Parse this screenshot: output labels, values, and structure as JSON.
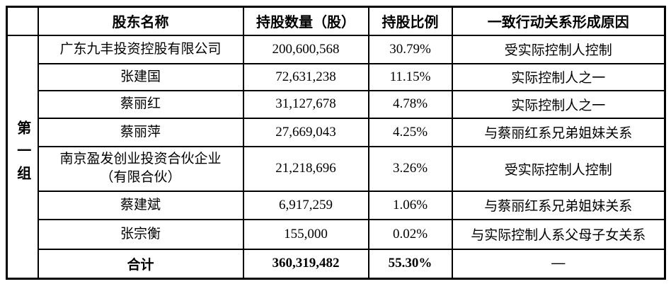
{
  "table": {
    "group_label": "第一组",
    "headers": {
      "name": "股东名称",
      "shares": "持股数量（股）",
      "ratio": "持股比例",
      "reason": "一致行动关系形成原因"
    },
    "rows": [
      {
        "name": "广东九丰投资控股有限公司",
        "shares": "200,600,568",
        "ratio": "30.79%",
        "reason": "受实际控制人控制"
      },
      {
        "name": "张建国",
        "shares": "72,631,238",
        "ratio": "11.15%",
        "reason": "实际控制人之一"
      },
      {
        "name": "蔡丽红",
        "shares": "31,127,678",
        "ratio": "4.78%",
        "reason": "实际控制人之一"
      },
      {
        "name": "蔡丽萍",
        "shares": "27,669,043",
        "ratio": "4.25%",
        "reason": "与蔡丽红系兄弟姐妹关系"
      },
      {
        "name": "南京盈发创业投资合伙企业\n（有限合伙）",
        "shares": "21,218,696",
        "ratio": "3.26%",
        "reason": "受实际控制人控制"
      },
      {
        "name": "蔡建斌",
        "shares": "6,917,259",
        "ratio": "1.06%",
        "reason": "与蔡丽红系兄弟姐妹关系"
      },
      {
        "name": "张宗衡",
        "shares": "155,000",
        "ratio": "0.02%",
        "reason": "与实际控制人系父母子女关系"
      }
    ],
    "total": {
      "label": "合计",
      "shares": "360,319,482",
      "ratio": "55.30%",
      "reason": "—"
    }
  },
  "colors": {
    "border": "#000000",
    "text": "#000000",
    "background": "#ffffff"
  }
}
